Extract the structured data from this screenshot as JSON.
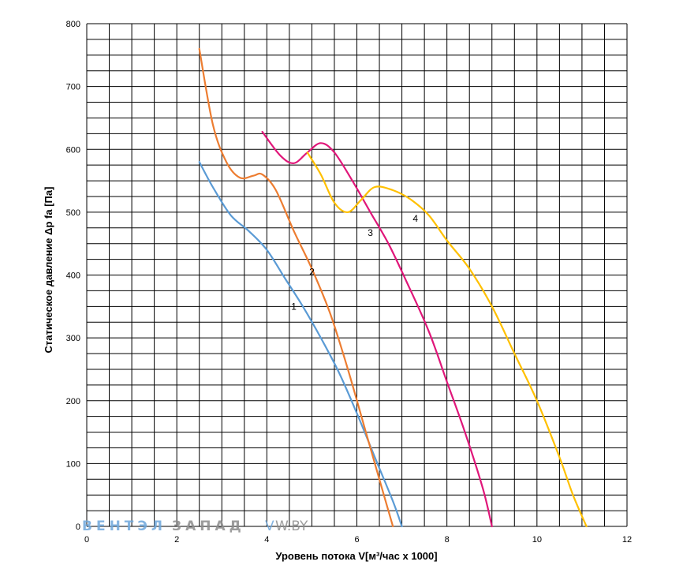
{
  "chart_data": {
    "type": "line",
    "title": "",
    "xlabel": "Уровень потока V[м³/час х 1000]",
    "ylabel": "Статическое давление Δp fa [Па]",
    "xlim": [
      0,
      12
    ],
    "ylim": [
      0,
      800
    ],
    "x_ticks": [
      "0",
      "2",
      "4",
      "6",
      "8",
      "10",
      "12"
    ],
    "y_ticks": [
      "0",
      "100",
      "200",
      "300",
      "400",
      "500",
      "600",
      "700",
      "800"
    ],
    "x_minor_step": 0.5,
    "y_minor_step": 25,
    "grid": true,
    "legend": "none",
    "series": [
      {
        "name": "1",
        "color": "#5B9BD5",
        "points": [
          [
            2.5,
            580
          ],
          [
            2.8,
            540
          ],
          [
            3.2,
            495
          ],
          [
            3.6,
            470
          ],
          [
            4.0,
            440
          ],
          [
            4.4,
            395
          ],
          [
            4.8,
            350
          ],
          [
            5.2,
            300
          ],
          [
            5.6,
            245
          ],
          [
            6.0,
            180
          ],
          [
            6.4,
            110
          ],
          [
            6.8,
            40
          ],
          [
            7.0,
            0
          ]
        ]
      },
      {
        "name": "2",
        "color": "#ED7D31",
        "points": [
          [
            2.5,
            760
          ],
          [
            2.8,
            640
          ],
          [
            3.1,
            580
          ],
          [
            3.4,
            555
          ],
          [
            3.7,
            558
          ],
          [
            3.9,
            560
          ],
          [
            4.2,
            535
          ],
          [
            4.6,
            470
          ],
          [
            5.0,
            410
          ],
          [
            5.4,
            340
          ],
          [
            5.8,
            250
          ],
          [
            6.2,
            150
          ],
          [
            6.6,
            50
          ],
          [
            6.8,
            0
          ]
        ]
      },
      {
        "name": "3",
        "color": "#E0177A",
        "points": [
          [
            3.9,
            628
          ],
          [
            4.3,
            590
          ],
          [
            4.6,
            578
          ],
          [
            4.9,
            595
          ],
          [
            5.2,
            610
          ],
          [
            5.5,
            595
          ],
          [
            5.9,
            550
          ],
          [
            6.3,
            500
          ],
          [
            6.7,
            450
          ],
          [
            7.1,
            390
          ],
          [
            7.6,
            310
          ],
          [
            8.0,
            230
          ],
          [
            8.4,
            150
          ],
          [
            8.8,
            60
          ],
          [
            9.0,
            0
          ]
        ]
      },
      {
        "name": "4",
        "color": "#FFC000",
        "points": [
          [
            4.9,
            595
          ],
          [
            5.2,
            560
          ],
          [
            5.5,
            515
          ],
          [
            5.8,
            500
          ],
          [
            6.1,
            520
          ],
          [
            6.4,
            540
          ],
          [
            6.8,
            535
          ],
          [
            7.2,
            520
          ],
          [
            7.6,
            495
          ],
          [
            8.0,
            455
          ],
          [
            8.5,
            410
          ],
          [
            9.0,
            350
          ],
          [
            9.5,
            275
          ],
          [
            10.0,
            200
          ],
          [
            10.5,
            110
          ],
          [
            10.8,
            50
          ],
          [
            11.1,
            0
          ]
        ]
      }
    ],
    "annotations": [
      {
        "text": "1",
        "x": 4.6,
        "y": 345
      },
      {
        "text": "2",
        "x": 5.0,
        "y": 400
      },
      {
        "text": "3",
        "x": 6.3,
        "y": 462
      },
      {
        "text": "4",
        "x": 7.3,
        "y": 485
      }
    ]
  },
  "watermark": {
    "part1": "ВЕНТЭЛ",
    "part2": "ЗАПАД",
    "part3": "V",
    "part4": "W.BY",
    "color1": "#6FA8DC",
    "color2": "#8C8C8C"
  }
}
